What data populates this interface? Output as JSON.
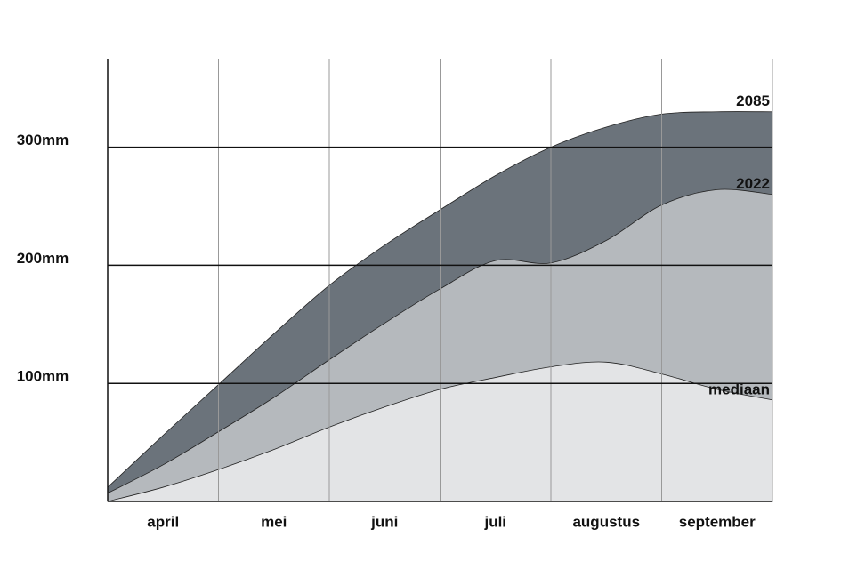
{
  "chart_data": {
    "type": "area",
    "categories": [
      "april",
      "mei",
      "juni",
      "juli",
      "augustus",
      "september"
    ],
    "x": [
      0,
      0.5,
      1,
      1.5,
      2,
      2.5,
      3,
      3.5,
      4,
      4.5,
      5,
      5.5,
      6
    ],
    "xlim": [
      0,
      6
    ],
    "ylim": [
      0,
      375
    ],
    "yticks": [
      {
        "value": 100,
        "label": "100mm"
      },
      {
        "value": 200,
        "label": "200mm"
      },
      {
        "value": 300,
        "label": "300mm"
      }
    ],
    "grid": true,
    "series": [
      {
        "name": "2085",
        "color": "#6b737b",
        "values": [
          12,
          56,
          99,
          142,
          183,
          217,
          247,
          276,
          300,
          317,
          328,
          330,
          330
        ]
      },
      {
        "name": "2022",
        "color": "#b5b9bd",
        "values": [
          7,
          31,
          59,
          88,
          120,
          151,
          180,
          204,
          202,
          221,
          251,
          264,
          260
        ]
      },
      {
        "name": "mediaan",
        "color": "#e3e4e6",
        "values": [
          0,
          12,
          27,
          44,
          63,
          80,
          95,
          105,
          114,
          118,
          108,
          95,
          86
        ]
      }
    ]
  }
}
